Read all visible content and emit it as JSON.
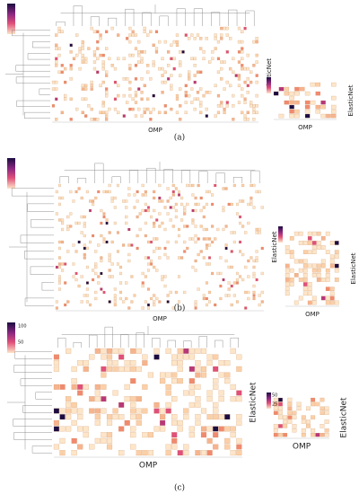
{
  "panels": [
    {
      "caption": "(a)",
      "x_label": "OMP",
      "y_label": "ElasticNet",
      "inset_x_label": "OMP",
      "inset_y_label": "ElasticNet"
    },
    {
      "caption": "(b)",
      "x_label": "OMP",
      "y_label": "ElasticNet",
      "inset_x_label": "OMP",
      "inset_y_label": "ElasticNet"
    },
    {
      "caption": "(c)",
      "x_label": "OMP",
      "y_label": "ElasticNet",
      "inset_x_label": "OMP",
      "inset_y_label": "ElasticNet",
      "colorbar_ticks": [
        "100",
        "50"
      ],
      "inset_colorbar_ticks": [
        "50",
        "25"
      ]
    }
  ]
}
